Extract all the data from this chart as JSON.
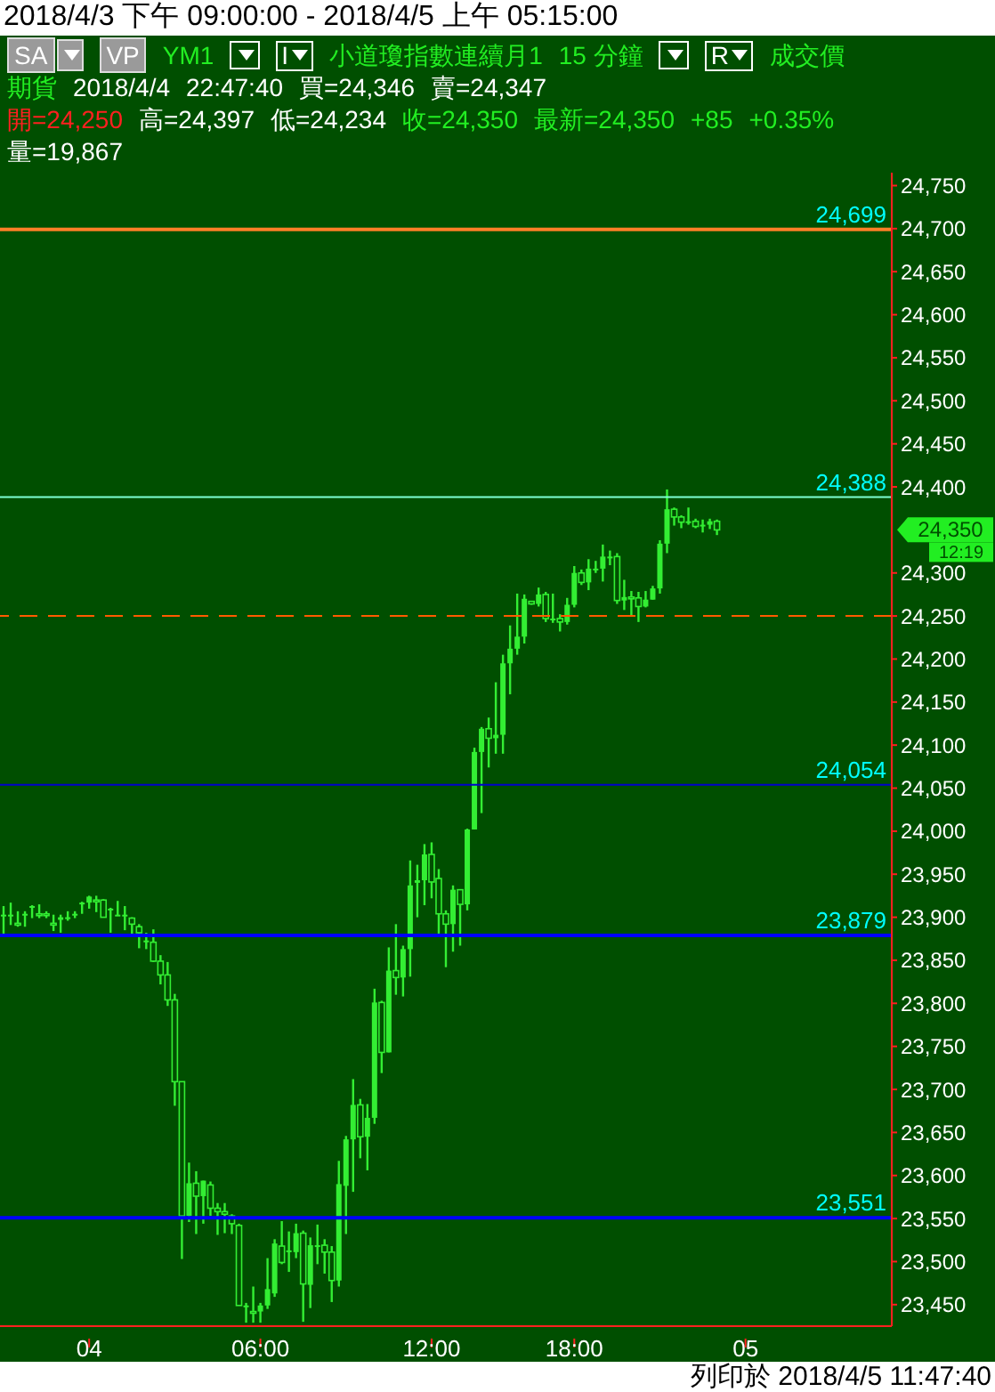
{
  "chart_data": {
    "type": "candlestick",
    "title": "2018/4/3 下午 09:00:00 - 2018/4/5 上午 05:15:00",
    "annotations": [
      "SA",
      "VP",
      "YM1",
      "I",
      "小道瓊指數連續月1",
      "15 分鐘",
      "R",
      "成交價",
      "期貨",
      "2018/4/4",
      "22:47:40",
      "買=24,346",
      "賣=24,347",
      "開=24,250",
      "高=24,397",
      "低=24,234",
      "收=24,350",
      "最新=24,350",
      "+85",
      "+0.35%",
      "量=19,867",
      "列印於 2018/4/5 11:47:40",
      "24,350",
      "12:19"
    ],
    "categories": [
      null,
      null,
      null,
      null,
      null,
      null,
      null,
      null,
      null,
      null,
      null,
      null,
      "04",
      null,
      null,
      null,
      null,
      null,
      null,
      null,
      null,
      null,
      null,
      null,
      null,
      null,
      null,
      null,
      null,
      null,
      null,
      null,
      null,
      null,
      null,
      null,
      "06:00",
      null,
      null,
      null,
      null,
      null,
      null,
      null,
      null,
      null,
      null,
      null,
      null,
      null,
      null,
      null,
      null,
      null,
      null,
      null,
      null,
      null,
      null,
      null,
      "12:00",
      null,
      null,
      null,
      null,
      null,
      null,
      null,
      null,
      null,
      null,
      null,
      null,
      null,
      null,
      null,
      null,
      null,
      null,
      null,
      "18:00",
      null,
      null,
      null,
      null,
      null,
      null,
      null,
      null,
      null,
      null,
      null,
      null,
      null,
      null,
      null,
      null,
      null,
      null,
      null,
      null,
      null,
      null,
      null,
      "05",
      null,
      null,
      null,
      null,
      null,
      null,
      null,
      null,
      null,
      null,
      null,
      null,
      null,
      null,
      null,
      null,
      null,
      null,
      null,
      null
    ],
    "color": "#33ee33",
    "ohlc": [
      [
        23903,
        23913,
        23881,
        23903
      ],
      [
        23903,
        23917,
        23891,
        23903
      ],
      [
        23893,
        23907,
        23889,
        23891
      ],
      [
        23904,
        23907,
        23889,
        23904
      ],
      [
        23913,
        23914,
        23899,
        23913
      ],
      [
        23904,
        23915,
        23899,
        23903
      ],
      [
        23904,
        23907,
        23899,
        23903
      ],
      [
        23893,
        23903,
        23884,
        23892
      ],
      [
        23897,
        23903,
        23882,
        23900
      ],
      [
        23900,
        23907,
        23896,
        23900
      ],
      [
        23903,
        23907,
        23899,
        23904
      ],
      [
        23917,
        23918,
        23904,
        23917
      ],
      [
        23917,
        23925,
        23910,
        23924
      ],
      [
        23920,
        23925,
        23906,
        23918
      ],
      [
        23920,
        23921,
        23900,
        23900
      ],
      [
        23909,
        23911,
        23882,
        23910
      ],
      [
        23903,
        23919,
        23902,
        23903
      ],
      [
        23903,
        23913,
        23885,
        23903
      ],
      [
        23899,
        23900,
        23881,
        23892
      ],
      [
        23889,
        23892,
        23864,
        23882
      ],
      [
        23871,
        23882,
        23863,
        23873
      ],
      [
        23871,
        23886,
        23848,
        23849
      ],
      [
        23849,
        23856,
        23822,
        23833
      ],
      [
        23833,
        23848,
        23797,
        23804
      ],
      [
        23804,
        23811,
        23681,
        23709
      ],
      [
        23709,
        23709,
        23503,
        23553
      ],
      [
        23553,
        23615,
        23546,
        23591
      ],
      [
        23591,
        23605,
        23532,
        23576
      ],
      [
        23576,
        23594,
        23544,
        23594
      ],
      [
        23589,
        23593,
        23553,
        23562
      ],
      [
        23562,
        23568,
        23531,
        23558
      ],
      [
        23558,
        23568,
        23533,
        23555
      ],
      [
        23553,
        23555,
        23532,
        23544
      ],
      [
        23542,
        23544,
        23449,
        23449
      ],
      [
        23449,
        23452,
        23429,
        23449
      ],
      [
        23442,
        23471,
        23429,
        23441
      ],
      [
        23442,
        23452,
        23429,
        23449
      ],
      [
        23449,
        23504,
        23445,
        23468
      ],
      [
        23463,
        23526,
        23459,
        23521
      ],
      [
        23518,
        23547,
        23497,
        23499
      ],
      [
        23513,
        23535,
        23488,
        23513
      ],
      [
        23511,
        23544,
        23504,
        23533
      ],
      [
        23533,
        23536,
        23430,
        23474
      ],
      [
        23473,
        23528,
        23446,
        23519
      ],
      [
        23518,
        23543,
        23497,
        23519
      ],
      [
        23519,
        23526,
        23486,
        23511
      ],
      [
        23511,
        23518,
        23453,
        23478
      ],
      [
        23478,
        23617,
        23471,
        23590
      ],
      [
        23588,
        23646,
        23532,
        23642
      ],
      [
        23642,
        23712,
        23581,
        23682
      ],
      [
        23682,
        23689,
        23620,
        23645
      ],
      [
        23645,
        23683,
        23606,
        23667
      ],
      [
        23667,
        23817,
        23660,
        23801
      ],
      [
        23801,
        23803,
        23719,
        23743
      ],
      [
        23743,
        23865,
        23743,
        23838
      ],
      [
        23838,
        23892,
        23810,
        23830
      ],
      [
        23830,
        23867,
        23808,
        23863
      ],
      [
        23863,
        23966,
        23831,
        23937
      ],
      [
        23940,
        23961,
        23900,
        23943
      ],
      [
        23943,
        23985,
        23914,
        23973
      ],
      [
        23973,
        23987,
        23922,
        23941
      ],
      [
        23945,
        23956,
        23881,
        23904
      ],
      [
        23904,
        23908,
        23842,
        23892
      ],
      [
        23892,
        23937,
        23860,
        23932
      ],
      [
        23932,
        23932,
        23867,
        23915
      ],
      [
        23915,
        24003,
        23908,
        24002
      ],
      [
        24002,
        24097,
        24002,
        24092
      ],
      [
        24092,
        24121,
        24021,
        24119
      ],
      [
        24119,
        24132,
        24074,
        24108
      ],
      [
        24108,
        24173,
        24090,
        24112
      ],
      [
        24112,
        24205,
        24090,
        24195
      ],
      [
        24195,
        24239,
        24159,
        24212
      ],
      [
        24212,
        24276,
        24205,
        24226
      ],
      [
        24226,
        24275,
        24218,
        24270
      ],
      [
        24267,
        24267,
        24263,
        24264
      ],
      [
        24264,
        24283,
        24261,
        24275
      ],
      [
        24275,
        24278,
        24243,
        24247
      ],
      [
        24247,
        24276,
        24242,
        24247
      ],
      [
        24247,
        24252,
        24232,
        24243
      ],
      [
        24243,
        24271,
        24240,
        24263
      ],
      [
        24263,
        24308,
        24260,
        24300
      ],
      [
        24300,
        24304,
        24286,
        24289
      ],
      [
        24289,
        24316,
        24280,
        24305
      ],
      [
        24305,
        24314,
        24300,
        24305
      ],
      [
        24305,
        24333,
        24290,
        24319
      ],
      [
        24319,
        24326,
        24309,
        24319
      ],
      [
        24319,
        24323,
        24264,
        24268
      ],
      [
        24268,
        24292,
        24257,
        24272
      ],
      [
        24272,
        24279,
        24250,
        24271
      ],
      [
        24271,
        24278,
        24243,
        24261
      ],
      [
        24261,
        24279,
        24260,
        24269
      ],
      [
        24269,
        24285,
        24269,
        24282
      ],
      [
        24282,
        24338,
        24276,
        24334
      ],
      [
        24334,
        24397,
        24323,
        24374
      ],
      [
        24374,
        24376,
        24355,
        24365
      ],
      [
        24365,
        24367,
        24352,
        24359
      ],
      [
        24359,
        24376,
        24356,
        24360
      ],
      [
        24360,
        24363,
        24352,
        24354
      ],
      [
        24354,
        24362,
        24347,
        24356
      ],
      [
        24356,
        24363,
        24351,
        24360
      ],
      [
        24360,
        24362,
        24344,
        24350
      ],
      null,
      null,
      null,
      null,
      null,
      null,
      null,
      null,
      null,
      null,
      null,
      null,
      null,
      null,
      null,
      null,
      null,
      null,
      null,
      null,
      null,
      null,
      null,
      null
    ],
    "ylim": [
      23425,
      24765
    ],
    "yticks": [
      {
        "value": 23450,
        "label": "23,450"
      },
      {
        "value": 23500,
        "label": "23,500"
      },
      {
        "value": 23550,
        "label": "23,550"
      },
      {
        "value": 23600,
        "label": "23,600"
      },
      {
        "value": 23650,
        "label": "23,650"
      },
      {
        "value": 23700,
        "label": "23,700"
      },
      {
        "value": 23750,
        "label": "23,750"
      },
      {
        "value": 23800,
        "label": "23,800"
      },
      {
        "value": 23850,
        "label": "23,850"
      },
      {
        "value": 23900,
        "label": "23,900"
      },
      {
        "value": 23950,
        "label": "23,950"
      },
      {
        "value": 24000,
        "label": "24,000"
      },
      {
        "value": 24050,
        "label": "24,050"
      },
      {
        "value": 24100,
        "label": "24,100"
      },
      {
        "value": 24150,
        "label": "24,150"
      },
      {
        "value": 24200,
        "label": "24,200"
      },
      {
        "value": 24250,
        "label": "24,250"
      },
      {
        "value": 24300,
        "label": "24,300"
      },
      {
        "value": 24400,
        "label": "24,400"
      },
      {
        "value": 24450,
        "label": "24,450"
      },
      {
        "value": 24500,
        "label": "24,500"
      },
      {
        "value": 24550,
        "label": "24,550"
      },
      {
        "value": 24600,
        "label": "24,600"
      },
      {
        "value": 24650,
        "label": "24,650"
      },
      {
        "value": 24700,
        "label": "24,700"
      },
      {
        "value": 24750,
        "label": "24,750"
      }
    ],
    "ref_lines": [
      {
        "axis": "y",
        "value": 24699,
        "label": "24,699",
        "color": "#ff7f27"
      },
      {
        "axis": "y",
        "value": 24388,
        "label": "24,388",
        "color": "#7fffd4"
      },
      {
        "axis": "y",
        "value": 24054,
        "label": "24,054",
        "color": "#0000cc"
      },
      {
        "axis": "y",
        "value": 23879,
        "label": "23,879",
        "color": "#0000ff"
      },
      {
        "axis": "y",
        "value": 23551,
        "label": "23,551",
        "color": "#0000ff"
      },
      {
        "axis": "y",
        "value": 24250,
        "color": "#ff5a00",
        "line_style": "dashed"
      }
    ],
    "grid": false
  }
}
